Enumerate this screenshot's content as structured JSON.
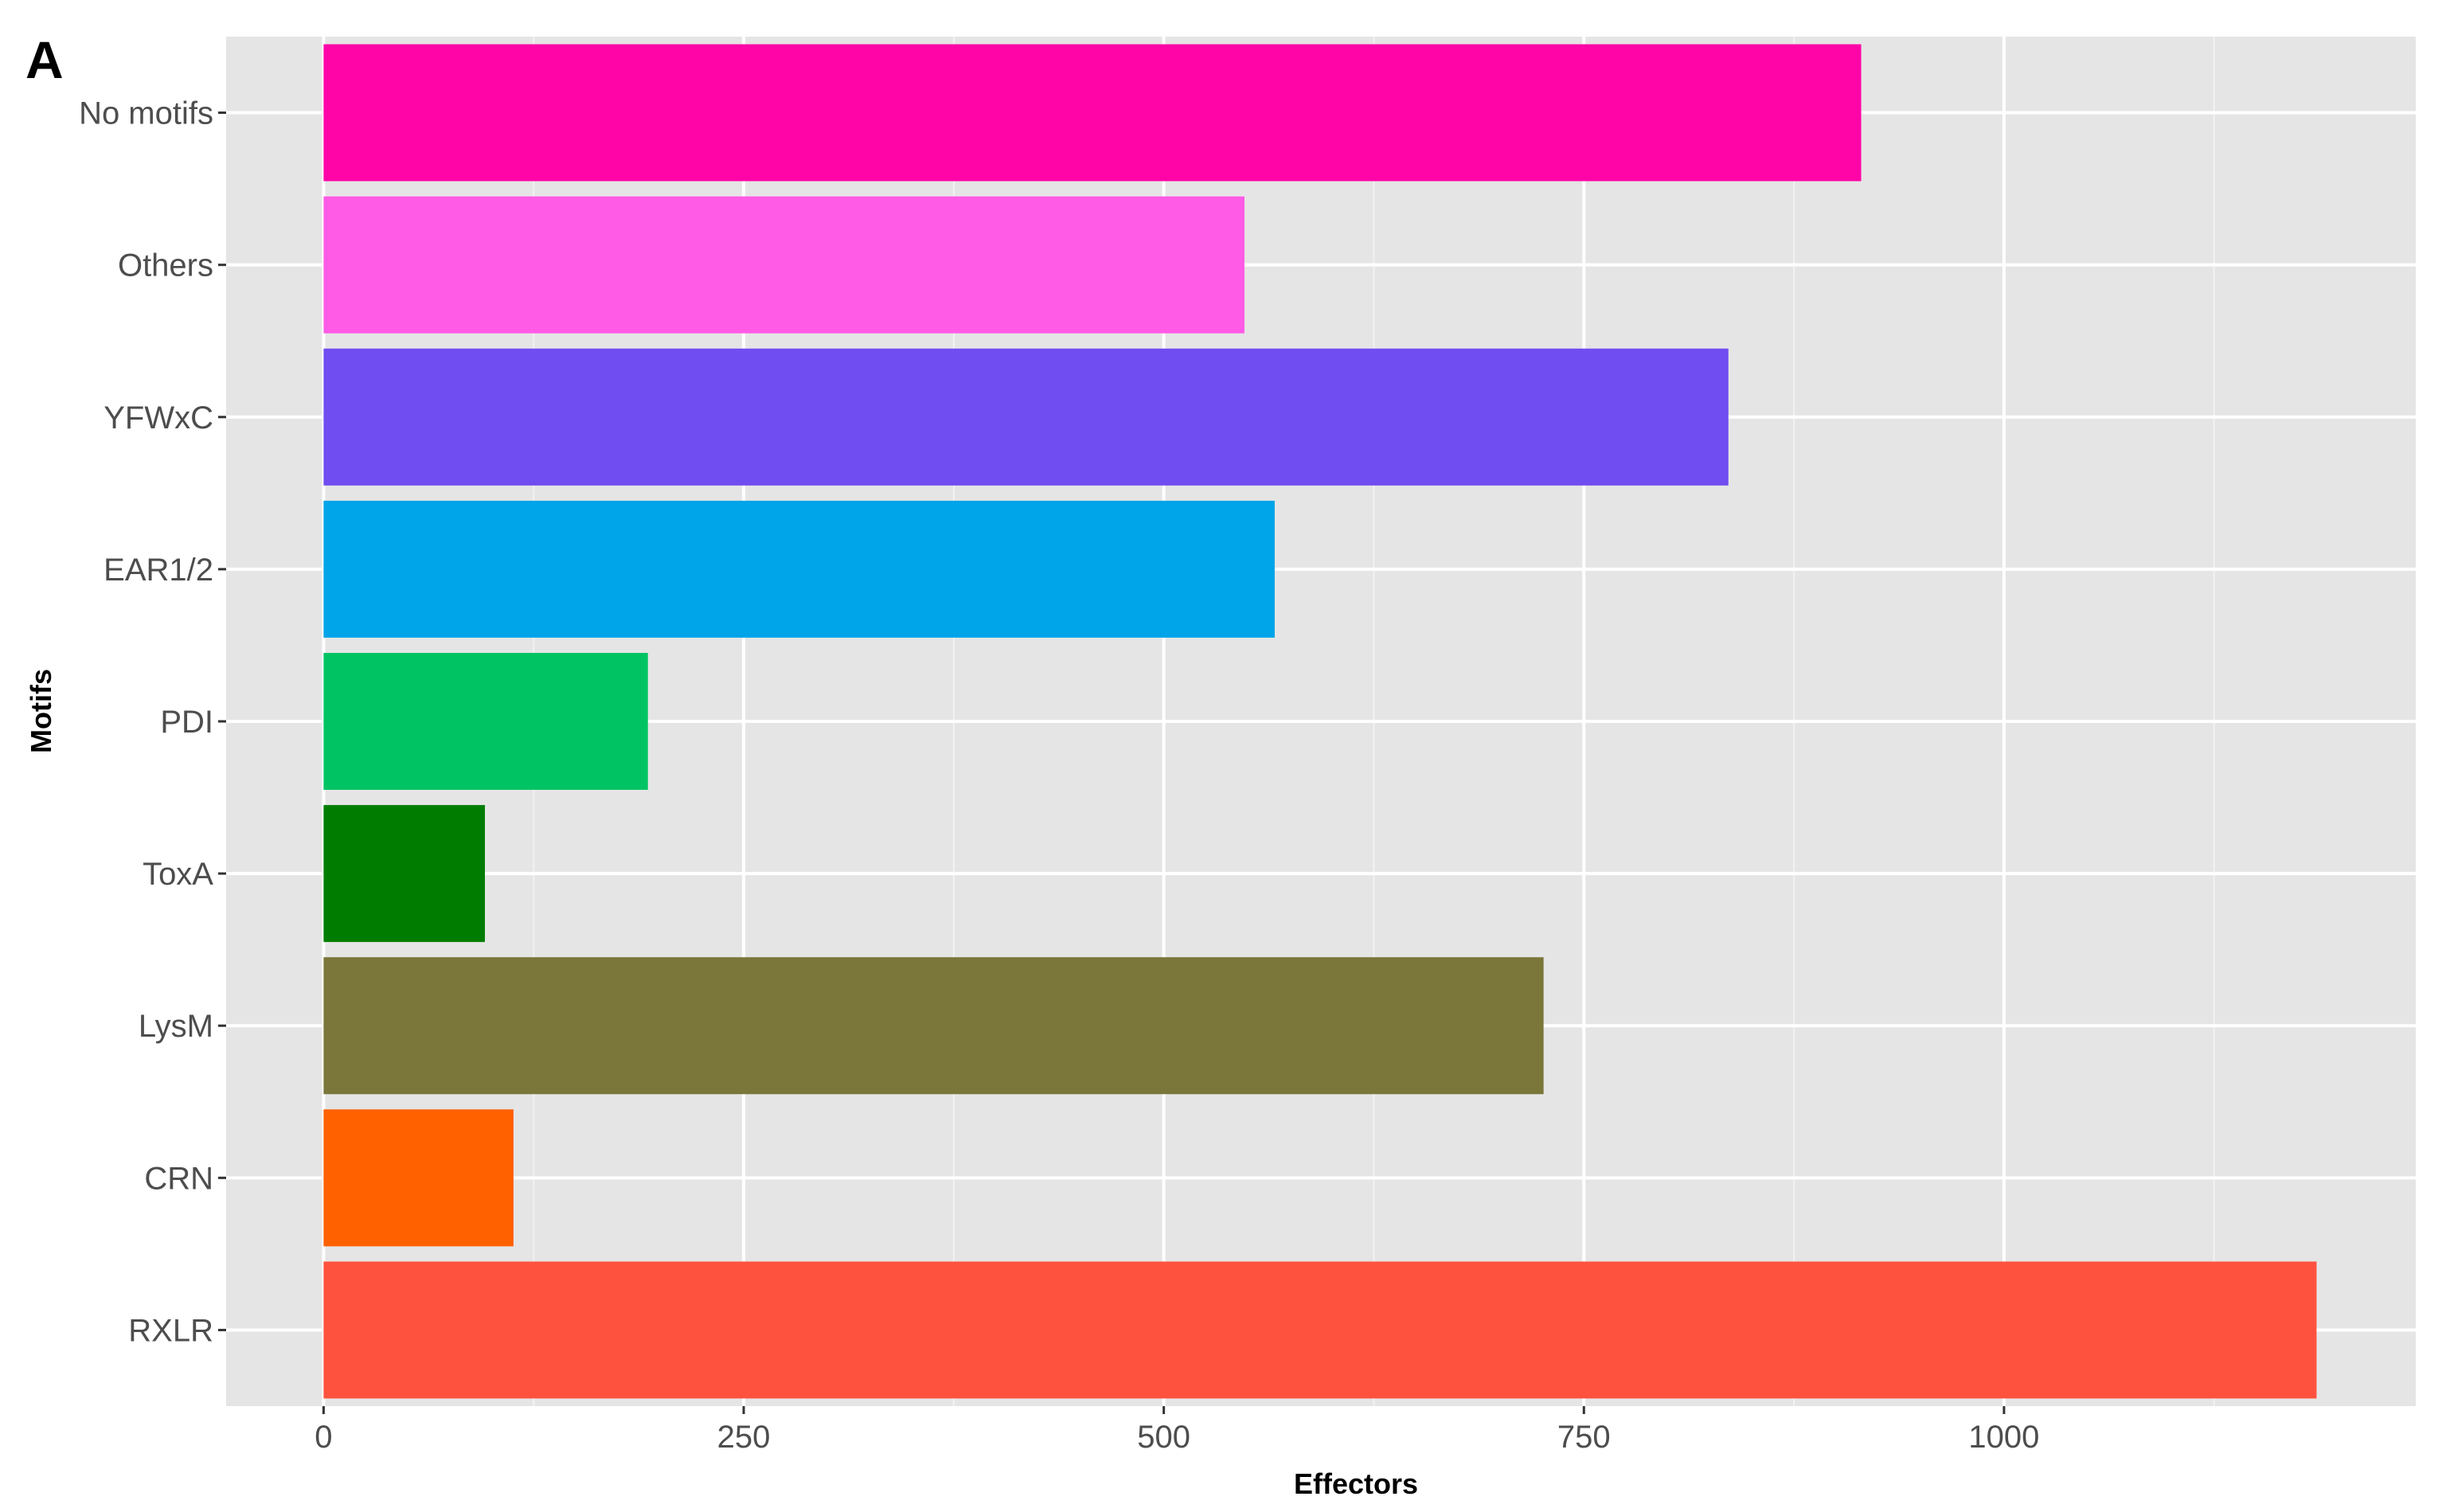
{
  "panel_label": "A",
  "chart_data": {
    "type": "bar",
    "orientation": "horizontal",
    "categories": [
      "No motifs",
      "Others",
      "YFWxC",
      "EAR1/2",
      "PDI",
      "ToxA",
      "LysM",
      "CRN",
      "RXLR"
    ],
    "values": [
      915,
      548,
      836,
      566,
      193,
      96,
      726,
      113,
      1186
    ],
    "colors": [
      "#ff05a8",
      "#ff5be6",
      "#704df0",
      "#00a4e8",
      "#00c464",
      "#007d00",
      "#7b773a",
      "#ff6000",
      "#ff523e"
    ],
    "xlabel": "Effectors",
    "ylabel": "Motifs",
    "xticks": [
      0,
      250,
      500,
      750,
      1000
    ],
    "xtick_labels": [
      "0",
      "250",
      "500",
      "750",
      "1000"
    ],
    "xlim": [
      -58,
      1245
    ],
    "grid": true,
    "legend": "none"
  }
}
